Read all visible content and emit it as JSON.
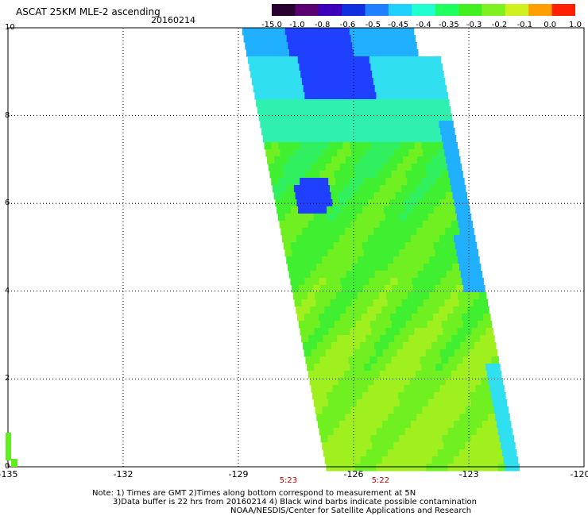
{
  "header": {
    "title": "ASCAT 25KM MLE-2 ascending",
    "date": "20160214"
  },
  "colorbar": {
    "labels": [
      "-15.0",
      "-1.0",
      "-0.8",
      "-0.6",
      "-0.5",
      "-0.45",
      "-0.4",
      "-0.35",
      "-0.3",
      "-0.2",
      "-0.1",
      "0.0",
      "1.0"
    ],
    "colors": [
      "#2a0030",
      "#5a0070",
      "#3d00b8",
      "#1030e0",
      "#2080ff",
      "#20d0ff",
      "#20ffd0",
      "#20ff60",
      "#40f020",
      "#80f020",
      "#d0f020",
      "#ffa000",
      "#ff2000"
    ]
  },
  "axes": {
    "x_ticks": [
      "-135",
      "-132",
      "-129",
      "-126",
      "-123",
      "-120"
    ],
    "y_ticks": [
      "0",
      "2",
      "4",
      "6",
      "8",
      "10"
    ]
  },
  "time_labels": [
    {
      "text": "5:23",
      "lon": -127.7
    },
    {
      "text": "5:22",
      "lon": -125.3
    }
  ],
  "notes": [
    "Note: 1) Times are GMT 2)Times along bottom correspond to measurement at 5N",
    "3)Data buffer is 22 hrs from 20160214 4) Black wind barbs indicate possible contamination",
    "NOAA/NESDIS/Center for Satellite Applications and Research"
  ],
  "swath": {
    "lon_range": [
      -135,
      -120
    ],
    "lat_range": [
      0,
      10
    ],
    "top_left_lon": -128.9,
    "top_right_lon": -124.5,
    "bottom_left_lon": -126.7,
    "bottom_right_lon": -121.8
  }
}
